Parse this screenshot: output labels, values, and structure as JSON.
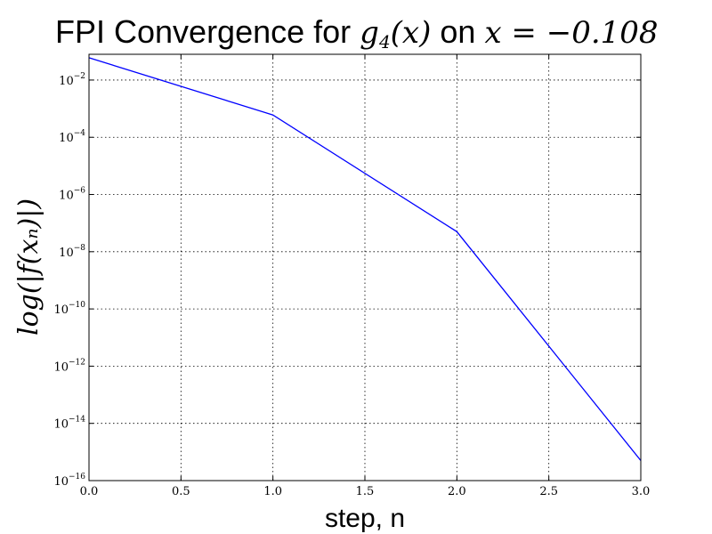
{
  "chart_data": {
    "type": "line",
    "title_prefix": "FPI Convergence for ",
    "title_func": "g",
    "title_func_sub": "4",
    "title_func_arg": "(x)",
    "title_mid": " on ",
    "title_expr": "x = −0.108",
    "xlabel": "step, n",
    "ylabel": "log(|f(xₙ)|)",
    "xlim": [
      0.0,
      3.0
    ],
    "ylim_log10": [
      -16,
      -1.1
    ],
    "yscale": "log",
    "grid": true,
    "x_ticks": [
      "0.0",
      "0.5",
      "1.0",
      "1.5",
      "2.0",
      "2.5",
      "3.0"
    ],
    "x_tick_values": [
      0.0,
      0.5,
      1.0,
      1.5,
      2.0,
      2.5,
      3.0
    ],
    "y_tick_exponents": [
      -2,
      -4,
      -6,
      -8,
      -10,
      -12,
      -14,
      -16
    ],
    "y_tick_base": "10",
    "y_tick_exp_labels": [
      "−2",
      "−4",
      "−6",
      "−8",
      "−10",
      "−12",
      "−14",
      "−16"
    ],
    "series": [
      {
        "color": "#0000ff",
        "x": [
          0,
          1,
          2,
          3
        ],
        "y": [
          0.06,
          0.0006,
          5e-08,
          5e-16
        ]
      }
    ]
  }
}
